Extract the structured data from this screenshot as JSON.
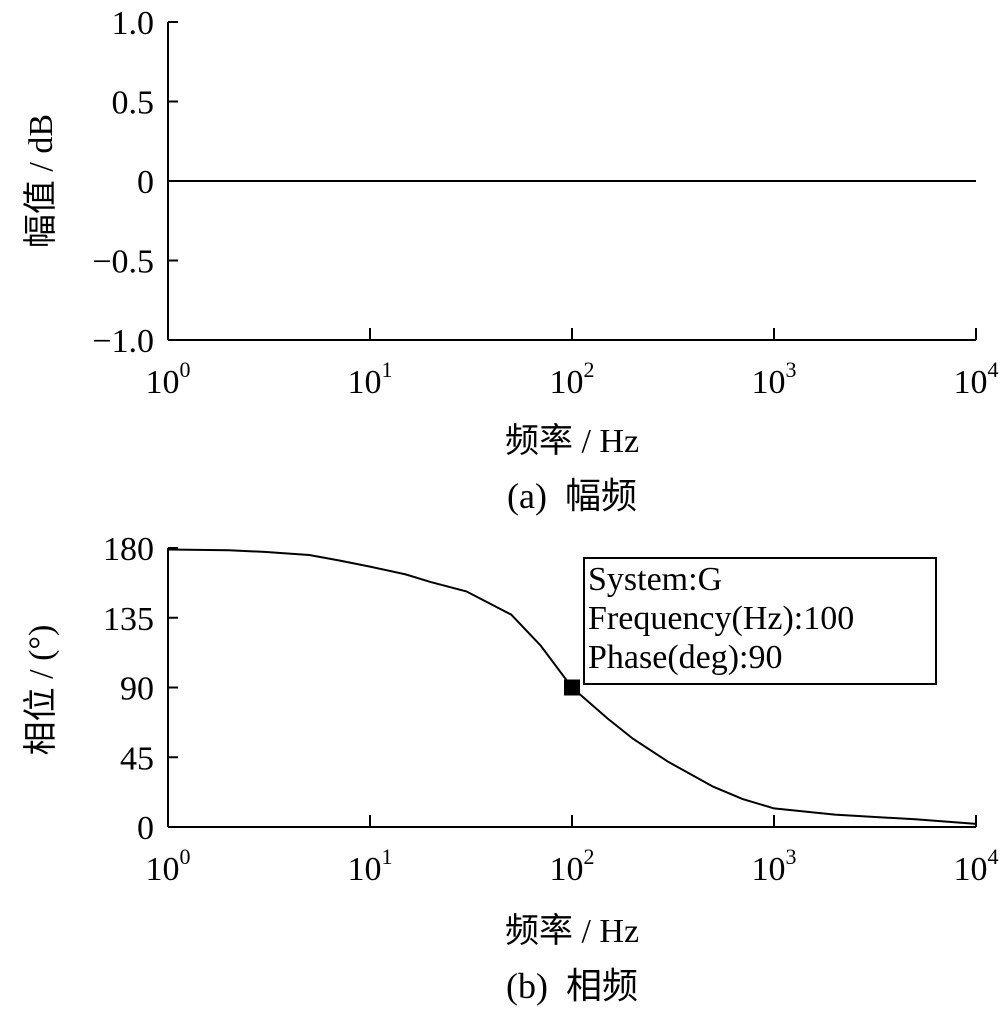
{
  "chart_data": [
    {
      "type": "line",
      "caption": "(a)  幅频",
      "xlabel": "频率 / Hz",
      "ylabel": "幅值 / dB",
      "xscale": "log",
      "xlim": [
        1,
        10000
      ],
      "ylim": [
        -1.0,
        1.0
      ],
      "x_ticks": [
        {
          "base": "10",
          "exp": "0"
        },
        {
          "base": "10",
          "exp": "1"
        },
        {
          "base": "10",
          "exp": "2"
        },
        {
          "base": "10",
          "exp": "3"
        },
        {
          "base": "10",
          "exp": "4"
        }
      ],
      "y_ticks": [
        {
          "value": 1.0,
          "label": "1.0"
        },
        {
          "value": 0.5,
          "label": "0.5"
        },
        {
          "value": 0,
          "label": "0"
        },
        {
          "value": -0.5,
          "label": "−0.5"
        },
        {
          "value": -1.0,
          "label": "−1.0"
        }
      ],
      "grid": false,
      "series": [
        {
          "x": [
            1,
            10,
            100,
            1000,
            10000
          ],
          "y": [
            0,
            0,
            0,
            0,
            0
          ]
        }
      ]
    },
    {
      "type": "line",
      "caption": "(b)  相频",
      "xlabel": "频率 / Hz",
      "ylabel": "相位 / (°)",
      "xscale": "log",
      "xlim": [
        1,
        10000
      ],
      "ylim": [
        0,
        180
      ],
      "x_ticks": [
        {
          "base": "10",
          "exp": "0"
        },
        {
          "base": "10",
          "exp": "1"
        },
        {
          "base": "10",
          "exp": "2"
        },
        {
          "base": "10",
          "exp": "3"
        },
        {
          "base": "10",
          "exp": "4"
        }
      ],
      "y_ticks": [
        {
          "value": 180,
          "label": "180"
        },
        {
          "value": 135,
          "label": "135"
        },
        {
          "value": 90,
          "label": "90"
        },
        {
          "value": 45,
          "label": "45"
        },
        {
          "value": 0,
          "label": "0"
        }
      ],
      "grid": false,
      "series": [
        {
          "x": [
            1,
            2,
            3,
            5,
            7,
            10,
            15,
            20,
            30,
            50,
            70,
            100,
            150,
            200,
            300,
            500,
            700,
            1000,
            2000,
            5000,
            10000
          ],
          "y": [
            179,
            178.5,
            177.5,
            175.5,
            172,
            168,
            163,
            158,
            152,
            137,
            117,
            90,
            70,
            57,
            42,
            26,
            18,
            12,
            8,
            5,
            2
          ]
        }
      ],
      "marker": {
        "x": 100,
        "y": 90
      },
      "datatip": {
        "lines": [
          "System:G",
          "Frequency(Hz):100",
          "Phase(deg):90"
        ],
        "position": "upper-right"
      }
    }
  ]
}
